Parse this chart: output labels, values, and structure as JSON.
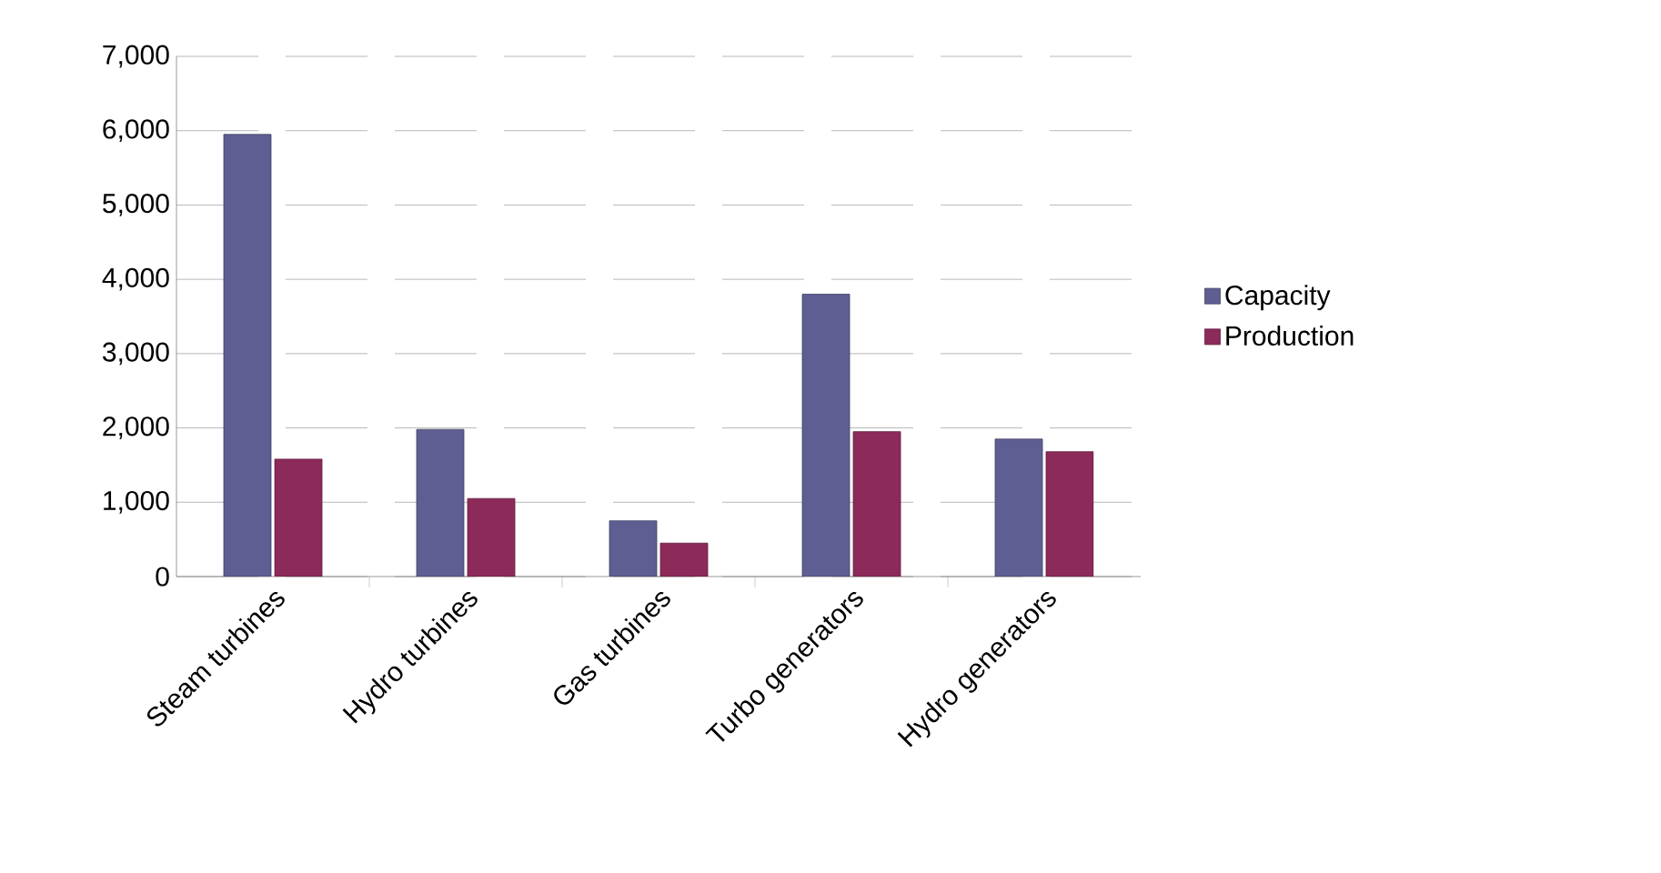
{
  "chart_data": {
    "type": "bar",
    "categories": [
      "Steam turbines",
      "Hydro turbines",
      "Gas turbines",
      "Turbo generators",
      "Hydro generators"
    ],
    "series": [
      {
        "name": "Capacity",
        "color": "#5e5e92",
        "values": [
          5950,
          1980,
          750,
          3800,
          1850
        ]
      },
      {
        "name": "Production",
        "color": "#8c2a5a",
        "values": [
          1580,
          1050,
          450,
          1950,
          1680
        ]
      }
    ],
    "ylim": [
      0,
      7000
    ],
    "yticks": [
      {
        "value": 0,
        "label": "0"
      },
      {
        "value": 1000,
        "label": "1,000"
      },
      {
        "value": 2000,
        "label": "2,000"
      },
      {
        "value": 3000,
        "label": "3,000"
      },
      {
        "value": 4000,
        "label": "4,000"
      },
      {
        "value": 5000,
        "label": "5,000"
      },
      {
        "value": 6000,
        "label": "6,000"
      },
      {
        "value": 7000,
        "label": "7,000"
      }
    ],
    "grid": "y",
    "legend": "right"
  }
}
